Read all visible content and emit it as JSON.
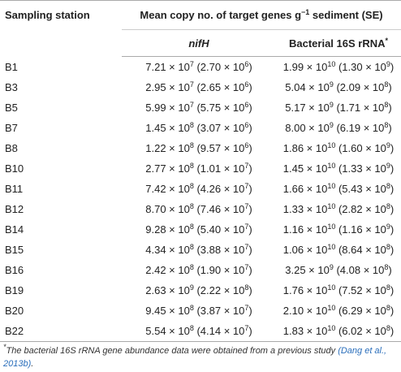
{
  "header": {
    "station": "Sampling station",
    "mean": [
      "Mean copy no. of target genes g",
      "−1",
      " sediment (SE)"
    ],
    "nifh": "nifH",
    "rrna": [
      "Bacterial 16S rRNA",
      "*"
    ]
  },
  "table": {
    "rows": [
      [
        "B1",
        [
          "7.21 × 10",
          "7",
          " (2.70 × 10",
          "6",
          ")"
        ],
        [
          "1.99 × 10",
          "10",
          " (1.30 × 10",
          "9",
          ")"
        ]
      ],
      [
        "B3",
        [
          "2.95 × 10",
          "7",
          " (2.65 × 10",
          "6",
          ")"
        ],
        [
          "5.04 × 10",
          "9",
          " (2.09 × 10",
          "8",
          ")"
        ]
      ],
      [
        "B5",
        [
          "5.99 × 10",
          "7",
          " (5.75 × 10",
          "6",
          ")"
        ],
        [
          "5.17 × 10",
          "9",
          " (1.71 × 10",
          "8",
          ")"
        ]
      ],
      [
        "B7",
        [
          "1.45 × 10",
          "8",
          " (3.07 × 10",
          "6",
          ")"
        ],
        [
          "8.00 × 10",
          "9",
          " (6.19 × 10",
          "8",
          ")"
        ]
      ],
      [
        "B8",
        [
          "1.22 × 10",
          "8",
          " (9.57 × 10",
          "6",
          ")"
        ],
        [
          "1.86 × 10",
          "10",
          " (1.60 × 10",
          "9",
          ")"
        ]
      ],
      [
        "B10",
        [
          "2.77 × 10",
          "8",
          " (1.01 × 10",
          "7",
          ")"
        ],
        [
          "1.45 × 10",
          "10",
          " (1.33 × 10",
          "9",
          ")"
        ]
      ],
      [
        "B11",
        [
          "7.42 × 10",
          "8",
          " (4.26 × 10",
          "7",
          ")"
        ],
        [
          "1.66 × 10",
          "10",
          " (5.43 × 10",
          "8",
          ")"
        ]
      ],
      [
        "B12",
        [
          "8.70 × 10",
          "8",
          " (7.46 × 10",
          "7",
          ")"
        ],
        [
          "1.33 × 10",
          "10",
          " (2.82 × 10",
          "8",
          ")"
        ]
      ],
      [
        "B14",
        [
          "9.28 × 10",
          "8",
          " (5.40 × 10",
          "7",
          ")"
        ],
        [
          "1.16 × 10",
          "10",
          " (1.16 × 10",
          "9",
          ")"
        ]
      ],
      [
        "B15",
        [
          "4.34 × 10",
          "8",
          " (3.88 × 10",
          "7",
          ")"
        ],
        [
          "1.06 × 10",
          "10",
          " (8.64 × 10",
          "8",
          ")"
        ]
      ],
      [
        "B16",
        [
          "2.42 × 10",
          "8",
          " (1.90 × 10",
          "7",
          ")"
        ],
        [
          "3.25 × 10",
          "9",
          " (4.08 × 10",
          "8",
          ")"
        ]
      ],
      [
        "B19",
        [
          "2.63 × 10",
          "9",
          " (2.22 × 10",
          "8",
          ")"
        ],
        [
          "1.76 × 10",
          "10",
          " (7.52 × 10",
          "8",
          ")"
        ]
      ],
      [
        "B20",
        [
          "9.45 × 10",
          "8",
          " (3.87 × 10",
          "7",
          ")"
        ],
        [
          "2.10 × 10",
          "10",
          " (6.29 × 10",
          "8",
          ")"
        ]
      ],
      [
        "B22",
        [
          "5.54 × 10",
          "8",
          " (4.14 × 10",
          "7",
          ")"
        ],
        [
          "1.83 × 10",
          "10",
          " (6.02 × 10",
          "8",
          ")"
        ]
      ]
    ]
  },
  "footnote": {
    "marker": "*",
    "text": "The bacterial 16S rRNA gene abundance data were obtained from a previous study ",
    "citation": "(Dang et al., 2013b)",
    "end": "."
  }
}
